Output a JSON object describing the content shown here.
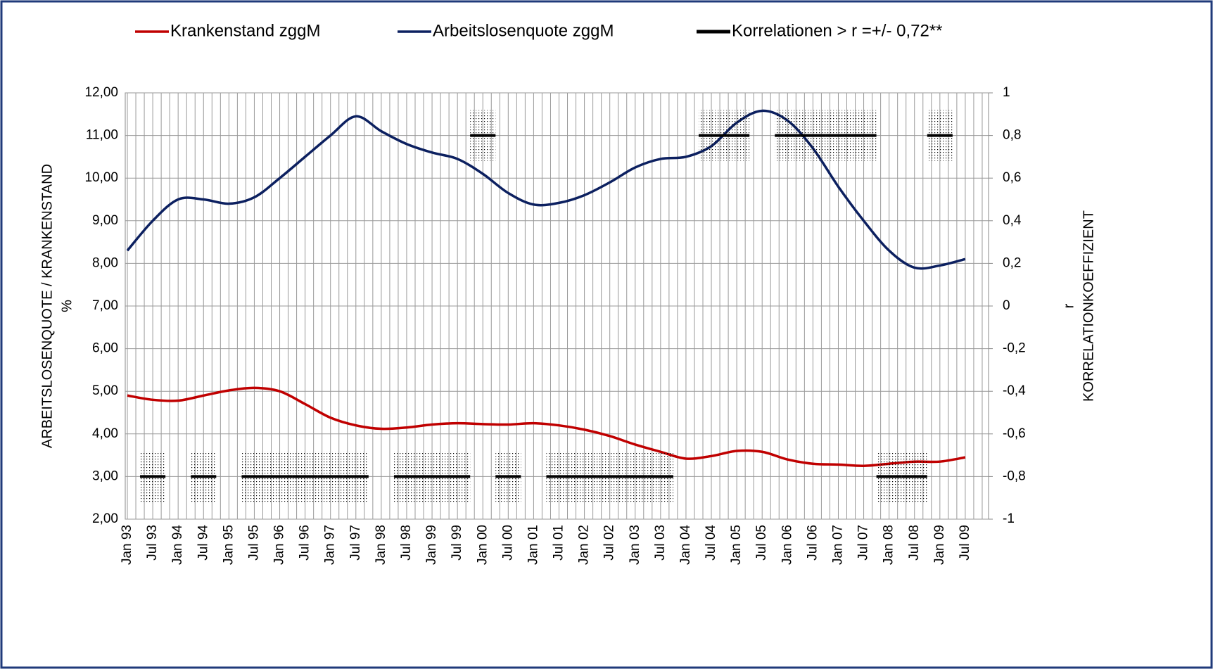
{
  "chart_data": {
    "type": "line",
    "categories": [
      "Jan 93",
      "Jul 93",
      "Jan 94",
      "Jul 94",
      "Jan 95",
      "Jul 95",
      "Jan 96",
      "Jul 96",
      "Jan 97",
      "Jul 97",
      "Jan 98",
      "Jul 98",
      "Jan 99",
      "Jul 99",
      "Jan 00",
      "Jul 00",
      "Jan 01",
      "Jul 01",
      "Jan 02",
      "Jul 02",
      "Jan 03",
      "Jul 03",
      "Jan 04",
      "Jul 04",
      "Jan 05",
      "Jul 05",
      "Jan 06",
      "Jul 06",
      "Jan 07",
      "Jul 07",
      "Jan 08",
      "Jul 08",
      "Jan 09",
      "Jul 09"
    ],
    "series": [
      {
        "name": "Krankenstand zggM",
        "color": "#c00000",
        "axis": "y",
        "values": [
          4.9,
          4.8,
          4.78,
          4.9,
          5.02,
          5.08,
          5.0,
          4.7,
          4.38,
          4.2,
          4.12,
          4.15,
          4.22,
          4.25,
          4.23,
          4.22,
          4.25,
          4.2,
          4.1,
          3.95,
          3.75,
          3.58,
          3.42,
          3.48,
          3.6,
          3.58,
          3.4,
          3.3,
          3.28,
          3.25,
          3.3,
          3.35,
          3.35,
          3.45
        ]
      },
      {
        "name": "Arbeitslosenquote zggM",
        "color": "#0c2060",
        "axis": "y",
        "values": [
          8.3,
          9.0,
          9.5,
          9.5,
          9.4,
          9.55,
          10.0,
          10.5,
          11.0,
          11.45,
          11.1,
          10.8,
          10.6,
          10.45,
          10.1,
          9.65,
          9.38,
          9.42,
          9.6,
          9.9,
          10.25,
          10.45,
          10.5,
          10.75,
          11.3,
          11.58,
          11.35,
          10.7,
          9.8,
          9.0,
          8.3,
          7.9,
          7.95,
          8.1
        ]
      },
      {
        "name": "Korrelationen > r =+/- 0,72**",
        "color": "#000000",
        "axis": "y2",
        "values": [
          null,
          -0.8,
          null,
          -0.8,
          null,
          -0.8,
          -0.8,
          -0.8,
          -0.8,
          -0.8,
          null,
          -0.8,
          -0.8,
          -0.8,
          0.8,
          -0.8,
          null,
          -0.8,
          -0.8,
          -0.8,
          -0.8,
          -0.8,
          null,
          0.8,
          0.8,
          null,
          0.8,
          0.8,
          0.8,
          0.8,
          -0.8,
          -0.8,
          0.8,
          null
        ]
      }
    ],
    "ylim": [
      2,
      12
    ],
    "yticks": [
      {
        "value": 2,
        "label": "2,00"
      },
      {
        "value": 3,
        "label": "3,00"
      },
      {
        "value": 4,
        "label": "4,00"
      },
      {
        "value": 5,
        "label": "5,00"
      },
      {
        "value": 6,
        "label": "6,00"
      },
      {
        "value": 7,
        "label": "7,00"
      },
      {
        "value": 8,
        "label": "8,00"
      },
      {
        "value": 9,
        "label": "9,00"
      },
      {
        "value": 10,
        "label": "10,00"
      },
      {
        "value": 11,
        "label": "11,00"
      },
      {
        "value": 12,
        "label": "12,00"
      }
    ],
    "y2lim": [
      -1,
      1
    ],
    "y2ticks": [
      -1,
      {
        "value": -0.8,
        "label": "-0,8"
      },
      {
        "value": -0.6,
        "label": "-0,6"
      },
      {
        "value": -0.4,
        "label": "-0,4"
      },
      {
        "value": -0.2,
        "label": "-0,2"
      },
      0,
      {
        "value": 0.2,
        "label": "0,2"
      },
      {
        "value": 0.4,
        "label": "0,4"
      },
      {
        "value": 0.6,
        "label": "0,6"
      },
      {
        "value": 0.8,
        "label": "0,8"
      },
      1
    ],
    "y_label": [
      "ARBEITSLOSENQUOTE  / KRANKENSTAND",
      "%"
    ],
    "y2_label": [
      "r",
      "KORRELATIONKOEFFIZIENT"
    ],
    "grid": true,
    "legend": "top"
  }
}
